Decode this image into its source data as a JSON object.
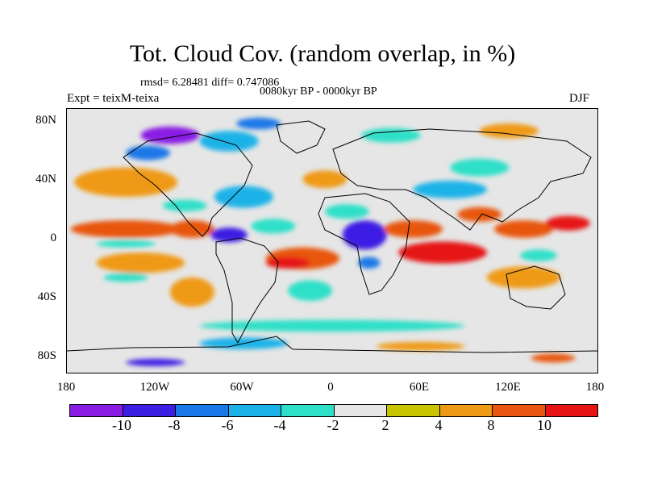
{
  "header": {
    "title": "Tot. Cloud Cov. (random overlap, in %)",
    "stats": "rmsd= 6.28481 diff= 0.747086",
    "period": "0080kyr BP - 0000kyr BP",
    "experiment": "Expt = teixM-teixa",
    "season": "DJF"
  },
  "map": {
    "projection": "cylindrical equidistant",
    "lon_range": [
      -180,
      180
    ],
    "lat_range": [
      -90,
      90
    ],
    "lat_labels": [
      "80N",
      "40N",
      "0",
      "40S",
      "80S"
    ],
    "lon_labels": [
      "180",
      "120W",
      "60W",
      "0",
      "60E",
      "120E",
      "180"
    ],
    "variable": "total cloud cover difference",
    "regions": [
      {
        "lon": -140,
        "lat": 40,
        "w": 70,
        "h": 20,
        "bin": "4 to 8"
      },
      {
        "lon": -140,
        "lat": 8,
        "w": 75,
        "h": 12,
        "bin": "8 to 10"
      },
      {
        "lon": -140,
        "lat": -2,
        "w": 40,
        "h": 5,
        "bin": "-4 to -2"
      },
      {
        "lon": -130,
        "lat": -15,
        "w": 60,
        "h": 14,
        "bin": "4 to 8"
      },
      {
        "lon": -95,
        "lat": -35,
        "w": 30,
        "h": 20,
        "bin": "4 to 8"
      },
      {
        "lon": -95,
        "lat": 8,
        "w": 30,
        "h": 12,
        "bin": "8 to 10"
      },
      {
        "lon": -100,
        "lat": 24,
        "w": 30,
        "h": 8,
        "bin": "-4 to -2"
      },
      {
        "lon": -70,
        "lat": 4,
        "w": 25,
        "h": 10,
        "bin": "-10 to -8"
      },
      {
        "lon": -60,
        "lat": 30,
        "w": 40,
        "h": 15,
        "bin": "-6 to -4"
      },
      {
        "lon": -40,
        "lat": 10,
        "w": 30,
        "h": 10,
        "bin": "-4 to -2"
      },
      {
        "lon": -20,
        "lat": -12,
        "w": 50,
        "h": 15,
        "bin": "8 to 10"
      },
      {
        "lon": -30,
        "lat": -15,
        "w": 30,
        "h": 8,
        "bin": "above 10"
      },
      {
        "lon": -15,
        "lat": -34,
        "w": 30,
        "h": 14,
        "bin": "-4 to -2"
      },
      {
        "lon": -5,
        "lat": 42,
        "w": 30,
        "h": 12,
        "bin": "4 to 8"
      },
      {
        "lon": 10,
        "lat": 20,
        "w": 30,
        "h": 10,
        "bin": "-4 to -2"
      },
      {
        "lon": 22,
        "lat": 4,
        "w": 30,
        "h": 20,
        "bin": "-10 to -8"
      },
      {
        "lon": 25,
        "lat": -15,
        "w": 15,
        "h": 8,
        "bin": "-8 to -6"
      },
      {
        "lon": 55,
        "lat": 8,
        "w": 40,
        "h": 12,
        "bin": "8 to 10"
      },
      {
        "lon": 75,
        "lat": -8,
        "w": 60,
        "h": 15,
        "bin": "above 10"
      },
      {
        "lon": 80,
        "lat": 35,
        "w": 50,
        "h": 12,
        "bin": "-6 to -4"
      },
      {
        "lon": 100,
        "lat": 50,
        "w": 40,
        "h": 12,
        "bin": "-4 to -2"
      },
      {
        "lon": 100,
        "lat": 18,
        "w": 30,
        "h": 10,
        "bin": "8 to 10"
      },
      {
        "lon": 130,
        "lat": 8,
        "w": 40,
        "h": 12,
        "bin": "8 to 10"
      },
      {
        "lon": 160,
        "lat": 12,
        "w": 30,
        "h": 10,
        "bin": "above 10"
      },
      {
        "lon": 130,
        "lat": -25,
        "w": 50,
        "h": 15,
        "bin": "4 to 8"
      },
      {
        "lon": 140,
        "lat": -10,
        "w": 25,
        "h": 8,
        "bin": "-4 to -2"
      },
      {
        "lon": -140,
        "lat": -25,
        "w": 30,
        "h": 6,
        "bin": "-4 to -2"
      },
      {
        "lon": -125,
        "lat": 60,
        "w": 30,
        "h": 10,
        "bin": "-8 to -6"
      },
      {
        "lon": -110,
        "lat": 72,
        "w": 40,
        "h": 12,
        "bin": "below -10"
      },
      {
        "lon": -70,
        "lat": 68,
        "w": 40,
        "h": 14,
        "bin": "-6 to -4"
      },
      {
        "lon": -50,
        "lat": 80,
        "w": 30,
        "h": 8,
        "bin": "-8 to -6"
      },
      {
        "lon": 40,
        "lat": 72,
        "w": 40,
        "h": 10,
        "bin": "-4 to -2"
      },
      {
        "lon": 120,
        "lat": 75,
        "w": 40,
        "h": 10,
        "bin": "4 to 8"
      },
      {
        "lon": 0,
        "lat": -58,
        "w": 180,
        "h": 8,
        "bin": "-4 to -2"
      },
      {
        "lon": -60,
        "lat": -70,
        "w": 60,
        "h": 8,
        "bin": "-6 to -4"
      },
      {
        "lon": 60,
        "lat": -72,
        "w": 60,
        "h": 6,
        "bin": "4 to 8"
      },
      {
        "lon": -120,
        "lat": -83,
        "w": 40,
        "h": 5,
        "bin": "-10 to -8"
      },
      {
        "lon": 150,
        "lat": -80,
        "w": 30,
        "h": 6,
        "bin": "8 to 10"
      }
    ]
  },
  "colorbar": {
    "tick_labels": [
      "-10",
      "-8",
      "-6",
      "-4",
      "-2",
      "2",
      "4",
      "8",
      "10"
    ],
    "bins": [
      {
        "range": "below -10",
        "color": "#8a1de3"
      },
      {
        "range": "-10 to -8",
        "color": "#3c1fe3"
      },
      {
        "range": "-8 to -6",
        "color": "#1a78e8"
      },
      {
        "range": "-6 to -4",
        "color": "#1ab2e8"
      },
      {
        "range": "-4 to -2",
        "color": "#2ee0c8"
      },
      {
        "range": "-2 to 2",
        "color": "#e6e6e6"
      },
      {
        "range": "2 to 4",
        "color": "#c9c400"
      },
      {
        "range": "4 to 8",
        "color": "#ef9a14"
      },
      {
        "range": "8 to 10",
        "color": "#e8560f"
      },
      {
        "range": "above 10",
        "color": "#e61414"
      }
    ]
  }
}
